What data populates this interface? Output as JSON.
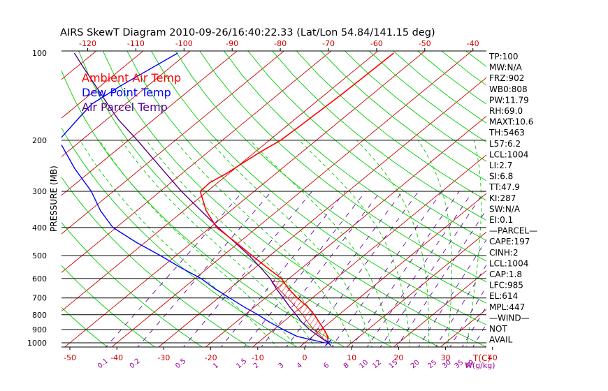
{
  "chart_data": {
    "type": "line",
    "title": "AIRS SkewT Diagram 2010-09-26/16:40:22.33 (Lat/Lon 54.84/141.15 deg)",
    "ylabel": "PRESSURE (MB)",
    "xlabel_bottom_temp": "T(C)",
    "xlabel_bottom_mix": "W(g/kg)",
    "pressure_ticks": [
      100,
      200,
      300,
      400,
      500,
      600,
      700,
      800,
      900,
      1000
    ],
    "pressure_range": [
      100,
      1050
    ],
    "top_temp_ticks": [
      -120,
      -110,
      -100,
      -90,
      -80,
      -70,
      -60,
      -50,
      -40
    ],
    "bottom_temp_ticks": [
      -50,
      -40,
      -30,
      -20,
      -10,
      0,
      10,
      20,
      30,
      40
    ],
    "mixing_ratio_labels": [
      "0.1",
      "0.2",
      "0.5",
      "1",
      "1.5",
      "2",
      "3",
      "4",
      "6",
      "8",
      "10",
      "12",
      "15",
      "20",
      "25",
      "30",
      "35",
      "40"
    ],
    "legend": [
      {
        "label": "Ambient Air Temp",
        "color": "#ff0000"
      },
      {
        "label": "Dew Point Temp",
        "color": "#0000ff"
      },
      {
        "label": "Air Parcel Temp",
        "color": "#550088"
      }
    ],
    "series": [
      {
        "name": "Ambient Air Temp",
        "color": "#ff0000",
        "pressure": [
          1000,
          950,
          900,
          850,
          800,
          750,
          700,
          650,
          600,
          550,
          500,
          450,
          400,
          350,
          300,
          280,
          260,
          240,
          220,
          200,
          180,
          160,
          140,
          120,
          100
        ],
        "temp_c": [
          5,
          3.2,
          0.7,
          -2.2,
          -5.2,
          -8.8,
          -13.2,
          -17.5,
          -21.6,
          -27.5,
          -33.8,
          -40.7,
          -48.6,
          -55.2,
          -61.5,
          -61.7,
          -60.5,
          -59.8,
          -58.9,
          -57.6,
          -57.2,
          -56.9,
          -56.5,
          -56.3,
          -56.1
        ]
      },
      {
        "name": "Dew Point Temp",
        "color": "#0000ff",
        "pressure": [
          1000,
          950,
          900,
          850,
          800,
          750,
          700,
          650,
          600,
          550,
          500,
          450,
          400,
          350,
          300,
          250,
          200,
          170,
          150,
          130,
          100
        ],
        "temp_c": [
          4.3,
          -3.3,
          -8.0,
          -12.7,
          -17.2,
          -22.4,
          -27.6,
          -33.2,
          -38.7,
          -45.9,
          -53.3,
          -61.9,
          -70.7,
          -77.7,
          -84.7,
          -94.2,
          -104.8,
          -106.2,
          -107.2,
          -105.8,
          -102.1
        ]
      },
      {
        "name": "Air Parcel Temp",
        "color": "#550088",
        "pressure": [
          1000,
          950,
          900,
          850,
          800,
          750,
          700,
          650,
          600,
          550,
          500,
          450,
          400,
          350,
          300,
          250,
          200,
          170,
          150,
          130,
          110,
          100
        ],
        "temp_c": [
          5,
          1.4,
          -2.4,
          -5.9,
          -9.1,
          -12.6,
          -16.2,
          -20.1,
          -24.0,
          -28.9,
          -34.4,
          -40.9,
          -48.3,
          -56.3,
          -65.5,
          -75.7,
          -88.1,
          -97.4,
          -103.8,
          -111.0,
          -119.4,
          -124.1
        ]
      }
    ],
    "cape_shading": {
      "from_pressure": 985,
      "to_pressure": 614
    }
  },
  "indices": [
    "TP:100",
    "MW:N/A",
    "FRZ:902",
    "WB0:808",
    "PW:11.79",
    "RH:69.0",
    "MAXT:10.6",
    "TH:5463",
    "L57:6.2",
    "LCL:1004",
    "LI:2.7",
    "SI:6.8",
    "TT:47.9",
    "KI:287",
    "SW:N/A",
    "EI:0.1",
    "—PARCEL—",
    "CAPE:197",
    "CINH:2",
    "LCL:1004",
    "CAP:1.8",
    "LFC:985",
    "EL:614",
    "MPL:447",
    "—WIND—",
    "NOT",
    "AVAIL"
  ]
}
